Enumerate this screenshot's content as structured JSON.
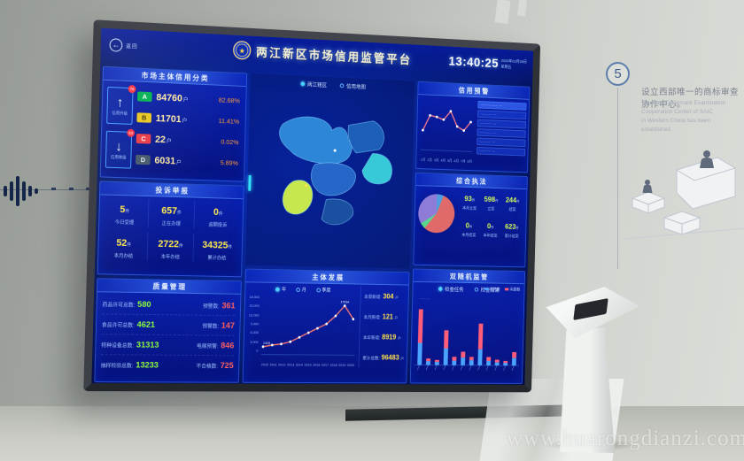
{
  "scene": {
    "watermark": "www.huarongdianzi.com",
    "wall_step": {
      "number": "5",
      "zh": "设立西部唯一的商标审查协作中心。",
      "en_line1": "The only Trademark Examination Cooperation Center of SAIC",
      "en_line2": "in Western China has been established."
    }
  },
  "header": {
    "back_label": "返回",
    "back_glyph": "←",
    "title": "两江新区市场信用监管平台",
    "time": "13:40:25",
    "date_line1": "2020年02月28日",
    "date_line2": "星期五"
  },
  "credit_class": {
    "title": "市场主体信用分类",
    "up": {
      "badge": "76",
      "label": "信用升级",
      "glyph": "↑"
    },
    "down": {
      "badge": "63",
      "label": "信用降级",
      "glyph": "↓"
    },
    "rows": [
      {
        "grade": "A",
        "count": "84760",
        "unit": "户",
        "pct": "82.68%"
      },
      {
        "grade": "B",
        "count": "11701",
        "unit": "户",
        "pct": "11.41%"
      },
      {
        "grade": "C",
        "count": "22",
        "unit": "户",
        "pct": "0.02%"
      },
      {
        "grade": "D",
        "count": "6031",
        "unit": "户",
        "pct": "5.89%"
      }
    ]
  },
  "complaints": {
    "title": "投诉举报",
    "stats": [
      {
        "value": "5",
        "unit": "件",
        "label": "今日受理"
      },
      {
        "value": "657",
        "unit": "件",
        "label": "正在办理"
      },
      {
        "value": "0",
        "unit": "件",
        "label": "逾期投诉"
      },
      {
        "value": "52",
        "unit": "件",
        "label": "本月办结"
      },
      {
        "value": "2722",
        "unit": "件",
        "label": "本年办结"
      },
      {
        "value": "34325",
        "unit": "件",
        "label": "累计办结"
      }
    ]
  },
  "quality": {
    "title": "质量管理",
    "rows": [
      {
        "l_label": "药品许可总数:",
        "l_value": "580",
        "r_label": "预警数:",
        "r_value": "361"
      },
      {
        "l_label": "食品许可总数:",
        "l_value": "4621",
        "r_label": "预警数:",
        "r_value": "147"
      },
      {
        "l_label": "特种设备总数:",
        "l_value": "31313",
        "r_label": "电梯预警:",
        "r_value": "846"
      },
      {
        "l_label": "抽样检验总数:",
        "l_value": "13233",
        "r_label": "不合格数:",
        "r_value": "725"
      }
    ]
  },
  "map": {
    "tabs": [
      {
        "label": "两江辖区",
        "active": true
      },
      {
        "label": "信用地图",
        "active": false
      }
    ]
  },
  "development": {
    "title": "主体发展",
    "legend": [
      "年",
      "月",
      "季度"
    ],
    "stats": [
      {
        "label": "本周新增:",
        "value": "304",
        "unit": "户"
      },
      {
        "label": "本月新增:",
        "value": "121",
        "unit": "户"
      },
      {
        "label": "本年新增:",
        "value": "8919",
        "unit": "户"
      },
      {
        "label": "累计总数:",
        "value": "96483",
        "unit": "户"
      }
    ]
  },
  "warning": {
    "title": "信用预警",
    "list": [
      "·············· ····",
      "·········· ···",
      "·········· ···",
      "·········· ···",
      "·········· ···",
      "·········· ···"
    ]
  },
  "enforcement": {
    "title": "综合执法",
    "stats": [
      {
        "value": "93",
        "unit": "件",
        "label": "本月立案"
      },
      {
        "value": "598",
        "unit": "件",
        "label": "立案"
      },
      {
        "value": "244",
        "unit": "件",
        "label": "结案"
      },
      {
        "value": "0",
        "unit": "件",
        "label": "本月结案"
      },
      {
        "value": "0",
        "unit": "件",
        "label": "本年结案"
      },
      {
        "value": "623",
        "unit": "件",
        "label": "累计结案"
      }
    ]
  },
  "random_check": {
    "title": "双随机监管",
    "options": [
      "检查任务",
      "检查结果"
    ],
    "legend": [
      "任务数",
      "问题数"
    ],
    "caption": "··········"
  },
  "chart_data": [
    {
      "id": "entity-growth",
      "type": "line",
      "title": "主体发展",
      "x": [
        "2010",
        "2011",
        "2012",
        "2013",
        "2014",
        "2015",
        "2016",
        "2017",
        "2018",
        "2019",
        "2020"
      ],
      "values": [
        2408,
        3000,
        3400,
        4200,
        5800,
        7400,
        9000,
        10600,
        13400,
        17034,
        12400
      ],
      "ylim": [
        0,
        18000
      ],
      "ytick_labels": [
        "18,000",
        "15,000",
        "12,000",
        "9,000",
        "6,000",
        "3,000",
        "0"
      ],
      "start_label": "2408",
      "peak_label": "17034",
      "line_color": "#ff7a6e",
      "legend_position": "top",
      "grid": false
    },
    {
      "id": "credit-warning-trend",
      "type": "line",
      "x": [
        "1月",
        "2月",
        "3月",
        "4月",
        "5月",
        "6月",
        "7月",
        "8月"
      ],
      "values": [
        150,
        270,
        260,
        240,
        310,
        190,
        160,
        230
      ],
      "ylim": [
        0,
        350
      ],
      "line_color": "#ff7b8a"
    },
    {
      "id": "random-inspection",
      "type": "bar",
      "stacked": true,
      "categories": [
        "1",
        "2",
        "3",
        "4",
        "5",
        "6",
        "7",
        "8",
        "9",
        "10",
        "11",
        "12"
      ],
      "series": [
        {
          "name": "任务数",
          "color": "#4aa3ff",
          "values": [
            34,
            6,
            5,
            26,
            7,
            12,
            8,
            25,
            7,
            5,
            4,
            12
          ]
        },
        {
          "name": "问题数",
          "color": "#ff5d7a",
          "values": [
            52,
            4,
            3,
            28,
            6,
            9,
            5,
            40,
            6,
            4,
            3,
            9
          ]
        }
      ]
    },
    {
      "id": "enforcement-pie",
      "type": "pie",
      "slices": [
        {
          "label": "",
          "pct": 6,
          "color": "#4f9fe0"
        },
        {
          "label": "",
          "pct": 55,
          "color": "#e06a6a"
        },
        {
          "label": "",
          "pct": 5,
          "color": "#58d68d"
        },
        {
          "label": "",
          "pct": 34,
          "color": "#8f7bd8"
        }
      ]
    }
  ]
}
